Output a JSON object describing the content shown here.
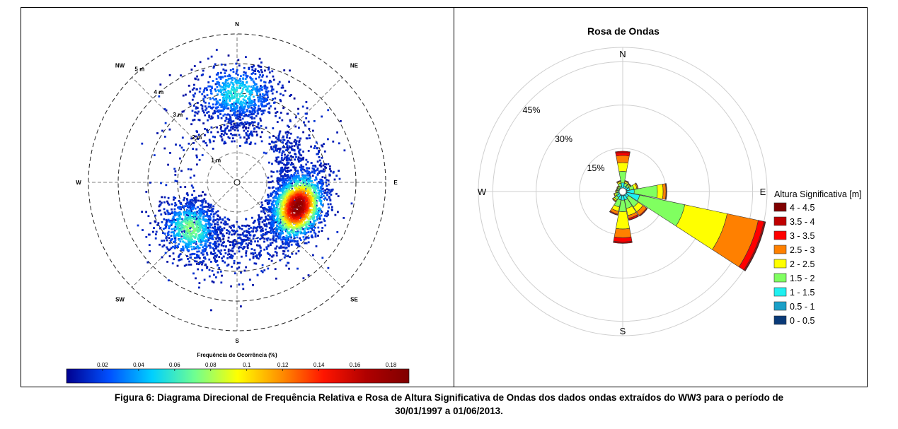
{
  "figure_caption_line1": "Figura 6: Diagrama Direcional de Frequência Relativa e Rosa de Altura Significativa de Ondas dos dados ondas extraídos do WW3 para o período de",
  "figure_caption_line2": "30/01/1997 a 01/06/2013.",
  "chart_data": [
    {
      "type": "heatmap",
      "subtype": "polar-scatter-density",
      "directions": [
        "N",
        "NE",
        "E",
        "SE",
        "S",
        "SW",
        "W",
        "NW"
      ],
      "radial_labels": [
        "1 m",
        "2 m",
        "3 m",
        "4 m",
        "5 m"
      ],
      "radial_ticks": [
        1,
        2,
        3,
        4,
        5
      ],
      "colorbar_title": "Frequência de Ocorrência (%)",
      "colorbar_ticks": [
        "0.02",
        "0.04",
        "0.06",
        "0.08",
        "0.1",
        "0.12",
        "0.14",
        "0.16",
        "0.18"
      ],
      "colorbar_range": [
        0,
        0.19
      ],
      "colormap": [
        "#00008f",
        "#0050ff",
        "#00d0ff",
        "#70ff90",
        "#ffff00",
        "#ff9000",
        "#ff1500",
        "#b00000",
        "#7f0000"
      ],
      "clusters": [
        {
          "direction_deg": 112,
          "radius_m": 2.2,
          "peak_frequency": 0.18
        },
        {
          "direction_deg": 225,
          "radius_m": 2.2,
          "peak_frequency": 0.07
        },
        {
          "direction_deg": 0,
          "radius_m": 3.0,
          "peak_frequency": 0.05
        }
      ]
    },
    {
      "type": "windrose",
      "title": "Rosa de Ondas",
      "directions": [
        "N",
        "E",
        "S",
        "W"
      ],
      "radial_labels": [
        "15%",
        "30%",
        "45%"
      ],
      "radial_ticks": [
        15,
        30,
        45
      ],
      "legend_title": "Altura Significativa [m]",
      "legend_position": "right",
      "bins": [
        "4 - 4.5",
        "3.5 - 4",
        "3 - 3.5",
        "2.5 - 3",
        "2 - 2.5",
        "1.5 - 2",
        "1 - 1.5",
        "0.5 - 1",
        "0 - 0.5"
      ],
      "bin_colors": [
        "#800000",
        "#c00000",
        "#ff0000",
        "#ff8000",
        "#ffff00",
        "#80ff60",
        "#20f0f0",
        "#1aa0c8",
        "#0a3a78"
      ],
      "sectors": [
        {
          "direction_deg": 112.5,
          "cumulative_percent": [
            0.5,
            1.5,
            6,
            22,
            37,
            48,
            50,
            50.4,
            50.6
          ]
        },
        {
          "direction_deg": 90,
          "cumulative_percent": [
            0.5,
            1.5,
            4,
            12,
            14,
            15,
            15.2,
            15.3,
            15.3
          ]
        },
        {
          "direction_deg": 135,
          "cumulative_percent": [
            0.5,
            1.2,
            2.5,
            6.5,
            8.5,
            10,
            10.3,
            10.4,
            10.4
          ]
        },
        {
          "direction_deg": 180,
          "cumulative_percent": [
            0.5,
            1.5,
            3,
            7,
            13,
            16,
            17.5,
            18,
            18
          ]
        },
        {
          "direction_deg": 157.5,
          "cumulative_percent": [
            0.5,
            1.5,
            3,
            6,
            8.5,
            9.5,
            10,
            10.2,
            10.2
          ]
        },
        {
          "direction_deg": 202.5,
          "cumulative_percent": [
            0.5,
            1.5,
            3,
            5.5,
            7,
            8,
            8.3,
            8.4,
            8.4
          ]
        },
        {
          "direction_deg": 225,
          "cumulative_percent": [
            0.5,
            1.2,
            2.5,
            3.5,
            4,
            4.3,
            4.4,
            4.4,
            4.4
          ]
        },
        {
          "direction_deg": 0,
          "cumulative_percent": [
            0.5,
            1.2,
            3,
            7,
            10,
            12.5,
            13.5,
            14,
            14
          ]
        },
        {
          "direction_deg": 22.5,
          "cumulative_percent": [
            0.5,
            1,
            2,
            3,
            3.5,
            3.8,
            3.9,
            3.9,
            3.9
          ]
        },
        {
          "direction_deg": 337.5,
          "cumulative_percent": [
            0.5,
            1,
            2,
            3,
            3.5,
            3.8,
            3.9,
            3.9,
            3.9
          ]
        },
        {
          "direction_deg": 67.5,
          "cumulative_percent": [
            0.5,
            1.5,
            2.5,
            4,
            5,
            5.4,
            5.5,
            5.5,
            5.5
          ]
        },
        {
          "direction_deg": 45,
          "cumulative_percent": [
            0.5,
            1,
            2,
            2.8,
            3.2,
            3.4,
            3.5,
            3.5,
            3.5
          ]
        },
        {
          "direction_deg": 247.5,
          "cumulative_percent": [
            0.5,
            1,
            1.8,
            2.5,
            3,
            3.2,
            3.2,
            3.2,
            3.2
          ]
        },
        {
          "direction_deg": 270,
          "cumulative_percent": [
            0.5,
            1,
            1.5,
            2,
            2.3,
            2.5,
            2.5,
            2.5,
            2.5
          ]
        },
        {
          "direction_deg": 292.5,
          "cumulative_percent": [
            0.5,
            1,
            1.5,
            2,
            2.2,
            2.3,
            2.3,
            2.3,
            2.3
          ]
        },
        {
          "direction_deg": 315,
          "cumulative_percent": [
            0.5,
            1,
            1.5,
            2,
            2.3,
            2.5,
            2.5,
            2.5,
            2.5
          ]
        }
      ]
    }
  ]
}
